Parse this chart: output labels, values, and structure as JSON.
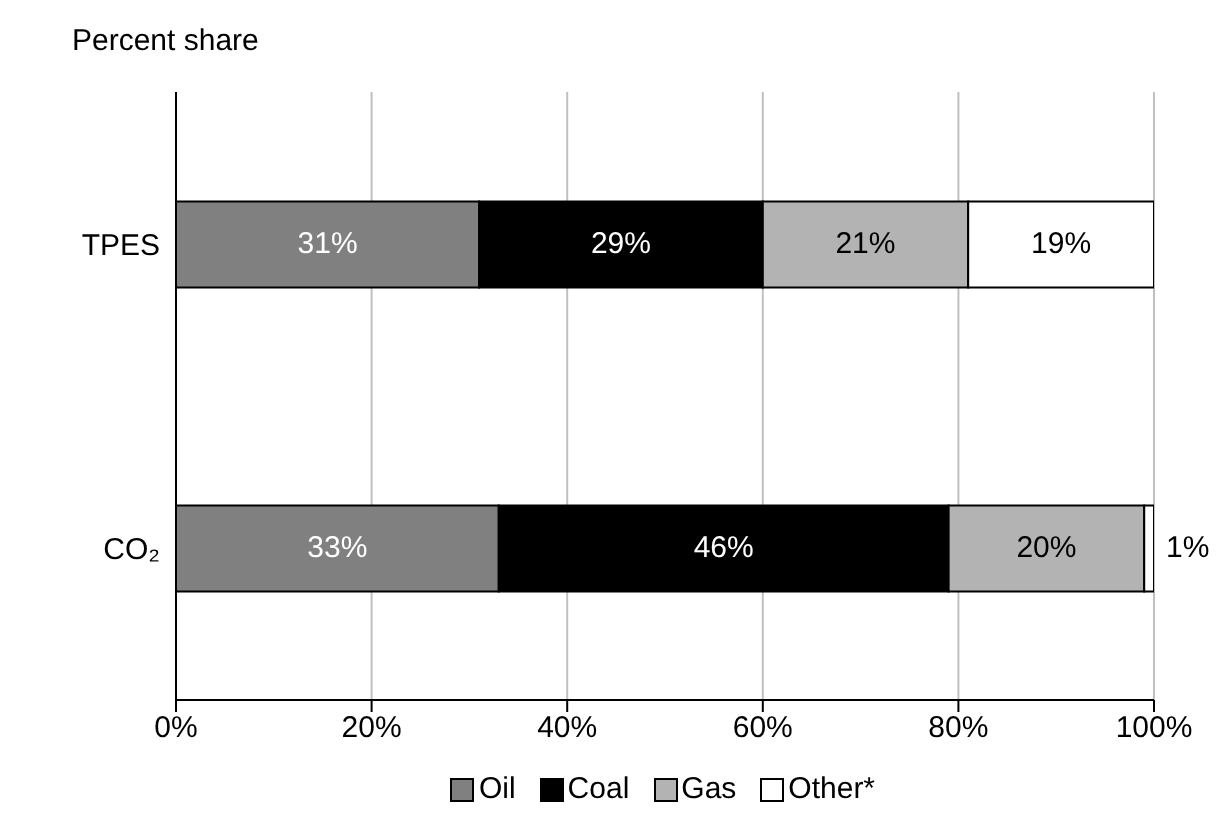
{
  "chart_data": {
    "type": "bar",
    "orientation": "horizontal",
    "stacked": true,
    "title": "Percent share",
    "categories": [
      "TPES",
      "CO₂"
    ],
    "series": [
      {
        "name": "Oil",
        "color": "#808080",
        "values": [
          31,
          33
        ],
        "value_labels": [
          "31%",
          "33%"
        ]
      },
      {
        "name": "Coal",
        "color": "#000000",
        "values": [
          29,
          46
        ],
        "value_labels": [
          "29%",
          "46%"
        ]
      },
      {
        "name": "Gas",
        "color": "#b3b3b3",
        "values": [
          21,
          20
        ],
        "value_labels": [
          "21%",
          "20%"
        ]
      },
      {
        "name": "Other*",
        "color": "#ffffff",
        "values": [
          19,
          1
        ],
        "value_labels": [
          "19%",
          "1%"
        ]
      }
    ],
    "xlim": [
      0,
      100
    ],
    "xticks": [
      {
        "value": 0,
        "label": "0%"
      },
      {
        "value": 20,
        "label": "20%"
      },
      {
        "value": 40,
        "label": "40%"
      },
      {
        "value": 60,
        "label": "60%"
      },
      {
        "value": 80,
        "label": "80%"
      },
      {
        "value": 100,
        "label": "100%"
      }
    ],
    "grid": "x",
    "legend": "bottom"
  }
}
